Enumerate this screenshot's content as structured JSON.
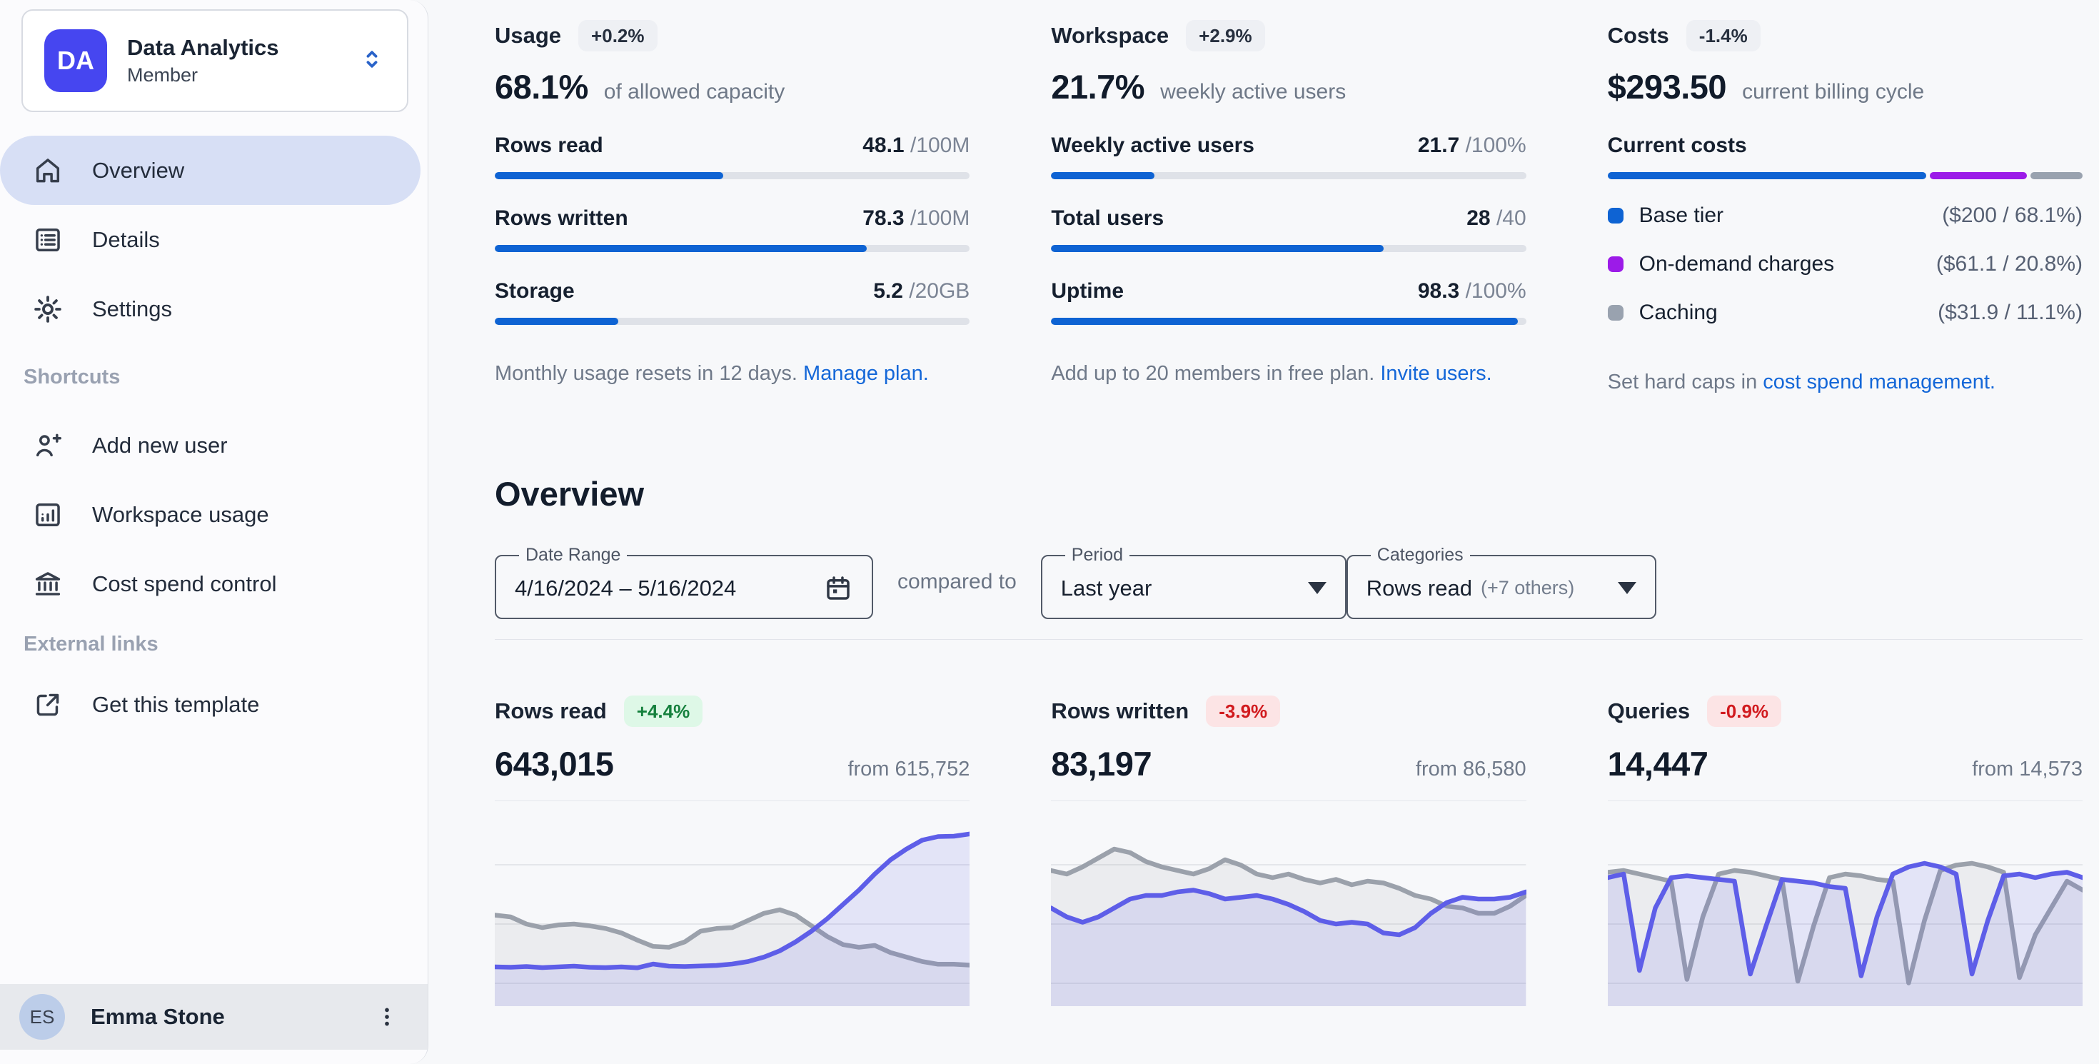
{
  "colors": {
    "brand_avatar": "#4646F0",
    "progress_blue": "#0E63D3",
    "chart_accent": "#5E5EE8",
    "chart_accent_fill": "rgba(94,94,232,0.13)",
    "chart_muted": "#9BA1AB",
    "chart_muted_fill": "rgba(148,154,165,0.12)",
    "active_nav_bg": "#D7DFF5",
    "link_blue": "#1467D8"
  },
  "sidebar": {
    "workspace": {
      "initials": "DA",
      "name": "Data Analytics",
      "role": "Member",
      "caret_icon": "unfold-chevrons-icon"
    },
    "nav": [
      {
        "label": "Overview",
        "icon": "home-icon",
        "active": true
      },
      {
        "label": "Details",
        "icon": "list-icon",
        "active": false
      },
      {
        "label": "Settings",
        "icon": "gear-icon",
        "active": false
      }
    ],
    "shortcuts_header": "Shortcuts",
    "shortcuts": [
      {
        "label": "Add new user",
        "icon": "user-plus-icon"
      },
      {
        "label": "Workspace usage",
        "icon": "chart-square-icon"
      },
      {
        "label": "Cost spend control",
        "icon": "bank-icon"
      }
    ],
    "external_header": "External links",
    "external": [
      {
        "label": "Get this template",
        "icon": "external-link-icon"
      }
    ],
    "user": {
      "initials": "ES",
      "name": "Emma Stone",
      "menu_icon": "kebab-menu-icon"
    }
  },
  "stats": {
    "usage": {
      "title": "Usage",
      "badge": "+0.2%",
      "big": "68.1%",
      "big_caption": "of allowed capacity",
      "metrics": [
        {
          "label": "Rows read",
          "value": "48.1",
          "limit": "/100M",
          "pct": 48.1
        },
        {
          "label": "Rows written",
          "value": "78.3",
          "limit": "/100M",
          "pct": 78.3
        },
        {
          "label": "Storage",
          "value": "5.2",
          "limit": "/20GB",
          "pct": 26
        }
      ],
      "caption": "Monthly usage resets in 12 days.",
      "caption_link": "Manage plan."
    },
    "workspace": {
      "title": "Workspace",
      "badge": "+2.9%",
      "big": "21.7%",
      "big_caption": "weekly active users",
      "metrics": [
        {
          "label": "Weekly active users",
          "value": "21.7",
          "limit": "/100%",
          "pct": 21.7
        },
        {
          "label": "Total users",
          "value": "28",
          "limit": "/40",
          "pct": 70
        },
        {
          "label": "Uptime",
          "value": "98.3",
          "limit": "/100%",
          "pct": 98.3
        }
      ],
      "caption": "Add up to 20 members in free plan.",
      "caption_link": "Invite users."
    },
    "costs": {
      "title": "Costs",
      "badge": "-1.4%",
      "big": "$293.50",
      "big_caption": "current billing cycle",
      "bar_label": "Current costs",
      "segments": [
        {
          "label": "Base tier",
          "detail": "($200 / 68.1%)",
          "pct": 68.1,
          "color": "#0E63D3"
        },
        {
          "label": "On-demand charges",
          "detail": "($61.1 / 20.8%)",
          "pct": 20.8,
          "color": "#9C1BE8"
        },
        {
          "label": "Caching",
          "detail": "($31.9 / 11.1%)",
          "pct": 11.1,
          "color": "#99A2AF"
        }
      ],
      "caption": "Set hard caps in",
      "caption_link": "cost spend management."
    }
  },
  "overview": {
    "title": "Overview",
    "date_range": {
      "label": "Date Range",
      "value": "4/16/2024 – 5/16/2024",
      "icon": "calendar-icon"
    },
    "compared_to": "compared to",
    "period": {
      "label": "Period",
      "value": "Last year"
    },
    "categories": {
      "label": "Categories",
      "value": "Rows read",
      "extra": "(+7 others)"
    }
  },
  "cards": [
    {
      "title": "Rows read",
      "badge": "+4.4%",
      "trend": "up",
      "value": "643,015",
      "from": "from 615,752"
    },
    {
      "title": "Rows written",
      "badge": "-3.9%",
      "trend": "down",
      "value": "83,197",
      "from": "from 86,580"
    },
    {
      "title": "Queries",
      "badge": "-0.9%",
      "trend": "down",
      "value": "14,447",
      "from": "from 14,573"
    }
  ],
  "chart_data": [
    {
      "type": "area",
      "title": "Rows read",
      "x": "31 daily points, 4/16/2024 – 5/16/2024 (no axis labels shown)",
      "ylim": [
        0,
        100
      ],
      "unit": "normalized chart height %, no y-axis labels shown",
      "grid": "3 horizontal gridlines",
      "legend": "none",
      "series": [
        {
          "name": "current period",
          "color": "#5E5EE8",
          "fill": "rgba(94,94,232,0.13)",
          "values": [
            22,
            21.8,
            22.2,
            21.6,
            22,
            22.4,
            21.8,
            21.6,
            22,
            21.5,
            23.6,
            22.4,
            22.2,
            22.5,
            22.8,
            23.6,
            25,
            27.5,
            31,
            36,
            42,
            49,
            57,
            65,
            74,
            82,
            88,
            93,
            95,
            95.2,
            96.5
          ]
        },
        {
          "name": "previous period (Last year)",
          "color": "#9BA1AB",
          "fill": "rgba(148,154,165,0.12)",
          "values": [
            51,
            50,
            46,
            44,
            45.5,
            46,
            45,
            43.5,
            41,
            37,
            33.5,
            33,
            36,
            42,
            43.5,
            44,
            48,
            52,
            54,
            51,
            45,
            39,
            34.5,
            33,
            34,
            30,
            27.5,
            25,
            23.5,
            23.5,
            23
          ]
        }
      ]
    },
    {
      "type": "area",
      "title": "Rows written",
      "x": "31 daily points, 4/16/2024 – 5/16/2024 (no axis labels shown)",
      "ylim": [
        0,
        100
      ],
      "unit": "normalized chart height %, no y-axis labels shown",
      "grid": "3 horizontal gridlines",
      "legend": "none",
      "series": [
        {
          "name": "current period",
          "color": "#5E5EE8",
          "fill": "rgba(94,94,232,0.13)",
          "values": [
            55,
            50,
            47,
            50,
            55,
            60,
            62,
            62,
            64,
            65,
            63,
            60,
            61,
            62,
            60,
            57,
            53,
            48,
            46,
            47,
            46,
            41,
            40,
            44,
            52,
            58,
            61,
            60,
            60,
            61,
            64
          ]
        },
        {
          "name": "previous period (Last year)",
          "color": "#9BA1AB",
          "fill": "rgba(148,154,165,0.12)",
          "values": [
            76,
            74,
            78,
            83,
            88,
            86,
            81,
            78,
            76,
            74,
            77,
            82,
            79,
            74,
            72,
            74,
            71,
            69,
            71,
            68,
            70,
            69,
            66,
            62,
            60,
            56,
            55,
            52,
            52,
            56,
            62
          ]
        }
      ]
    },
    {
      "type": "area",
      "title": "Queries",
      "x": "31 daily points, 4/16/2024 – 5/16/2024 (no axis labels shown)",
      "ylim": [
        0,
        100
      ],
      "unit": "normalized chart height %, no y-axis labels shown",
      "grid": "3 horizontal gridlines",
      "legend": "none",
      "series": [
        {
          "name": "current period",
          "color": "#5E5EE8",
          "fill": "rgba(94,94,232,0.13)",
          "values": [
            72,
            74,
            20,
            55,
            72,
            73,
            72,
            71,
            70,
            18,
            45,
            71,
            70,
            69,
            67,
            66,
            17,
            50,
            74,
            78,
            80,
            78,
            74,
            18,
            48,
            73,
            74,
            72,
            74,
            75,
            72
          ]
        },
        {
          "name": "previous period (Last year)",
          "color": "#9BA1AB",
          "fill": "rgba(148,154,165,0.12)",
          "values": [
            75,
            76,
            74,
            72,
            70,
            15,
            50,
            74,
            76,
            75,
            73,
            71,
            14,
            45,
            72,
            74,
            73,
            71,
            70,
            13,
            48,
            76,
            79,
            80,
            78,
            75,
            16,
            40,
            55,
            70,
            65
          ]
        }
      ]
    }
  ]
}
